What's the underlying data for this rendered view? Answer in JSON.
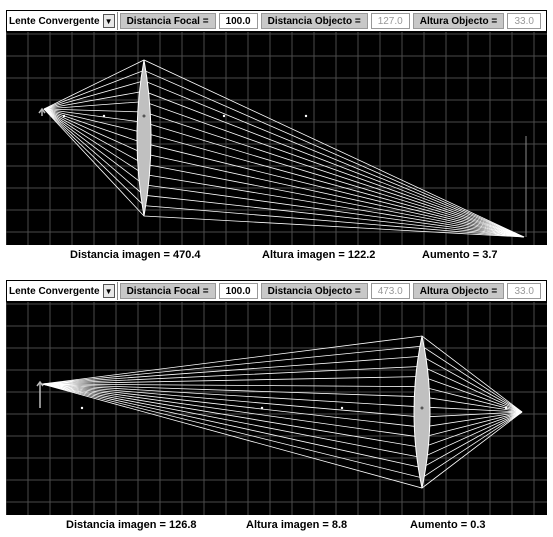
{
  "panels": [
    {
      "lens_type": "Lente Convergente",
      "focal_label": "Distancia Focal =",
      "focal_value": "100.0",
      "object_distance_label": "Distancia Objecto =",
      "object_distance_value": "127.0",
      "object_height_label": "Altura Objecto =",
      "object_height_value": "33.0",
      "image_distance_text": "Distancia imagen = 470.4",
      "image_height_text": "Altura imagen = 122.2",
      "magnification_text": "Aumento = 3.7"
    },
    {
      "lens_type": "Lente Convergente",
      "focal_label": "Distancia Focal =",
      "focal_value": "100.0",
      "object_distance_label": "Distancia Objecto =",
      "object_distance_value": "473.0",
      "object_height_label": "Altura Objecto =",
      "object_height_value": "33.0",
      "image_distance_text": "Distancia imagen = 126.8",
      "image_height_text": "Altura imagen = 8.8",
      "magnification_text": "Aumento = 0.3"
    }
  ],
  "colors": {
    "scene_bg": "#000000",
    "grid": "#4a4a4a",
    "rays": "#ffffff",
    "lens": "#c0c0c0"
  }
}
